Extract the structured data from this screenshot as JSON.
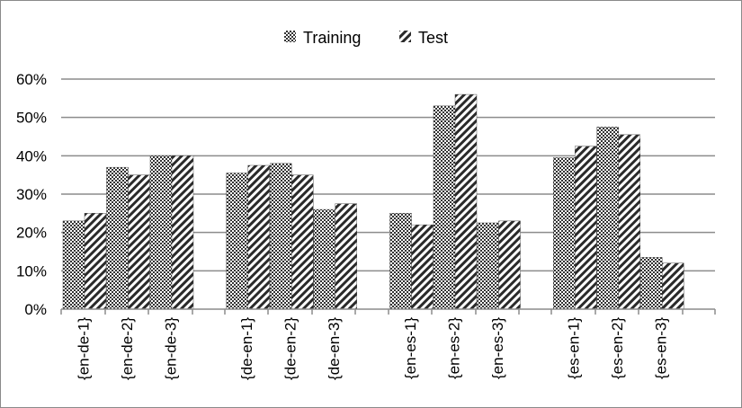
{
  "chart_data": {
    "type": "bar",
    "title": "",
    "xlabel": "",
    "ylabel": "",
    "ylim": [
      0,
      60
    ],
    "y_ticks": [
      "0%",
      "10%",
      "20%",
      "30%",
      "40%",
      "50%",
      "60%"
    ],
    "grid": true,
    "legend_position": "top",
    "groups": [
      [
        "{en-de-1}",
        "{en-de-2}",
        "{en-de-3}"
      ],
      [
        "{de-en-1}",
        "{de-en-2}",
        "{de-en-3}"
      ],
      [
        "{en-es-1}",
        "{en-es-2}",
        "{en-es-3}"
      ],
      [
        "{es-en-1}",
        "{es-en-2}",
        "{es-en-3}"
      ]
    ],
    "categories": [
      "{en-de-1}",
      "{en-de-2}",
      "{en-de-3}",
      "{de-en-1}",
      "{de-en-2}",
      "{de-en-3}",
      "{en-es-1}",
      "{en-es-2}",
      "{en-es-3}",
      "{es-en-1}",
      "{es-en-2}",
      "{es-en-3}"
    ],
    "series": [
      {
        "name": "Training",
        "pattern": "checkered",
        "values": [
          23,
          37,
          40,
          35.5,
          38,
          26,
          25,
          53,
          22.5,
          39.5,
          47.5,
          13.5
        ]
      },
      {
        "name": "Test",
        "pattern": "diagonal-stripes",
        "values": [
          25,
          35,
          40,
          37.5,
          35,
          27.5,
          22,
          56,
          23,
          42.5,
          45.5,
          12
        ]
      }
    ]
  }
}
